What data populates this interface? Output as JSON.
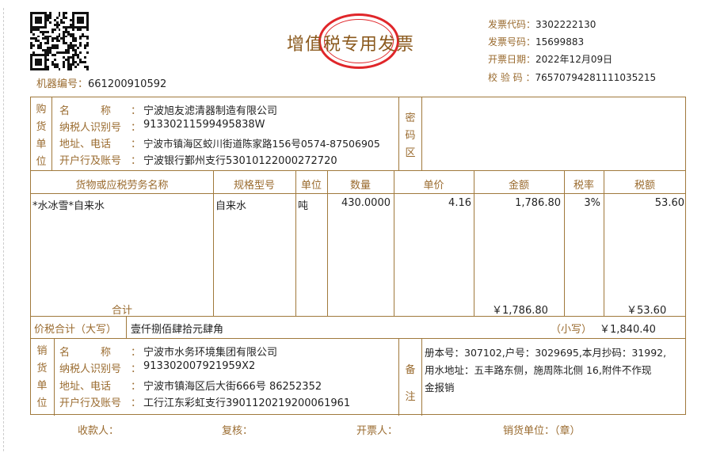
{
  "header": {
    "title": "增值税专用发票",
    "machine_label": "机器编号：",
    "machine_no": "661200910592",
    "code_label": "发票代码：",
    "code": "3302222130",
    "number_label": "发票号码：",
    "number": "15699883",
    "date_label": "开票日期：",
    "date": "2022年12月09日",
    "check_label": "校 验 码 ：",
    "check": "76570794281111035215"
  },
  "labels": {
    "buyer": "购货单位",
    "seller": "销货单位",
    "cipher": "密码区",
    "remark": "备注",
    "name": "名　　　称",
    "tax_id": "纳税人识别号",
    "addr": "地址、电话",
    "bank": "开户行及账号",
    "colon": "："
  },
  "buyer": {
    "name": "宁波旭友滤清器制造有限公司",
    "tax_id": "91330211599495838W",
    "addr": "宁波市镇海区蛟川街道陈家路156号0574-87506905",
    "bank": "宁波银行鄞州支行53010122000272720"
  },
  "columns": [
    "货物或应税劳务名称",
    "规格型号",
    "单位",
    "数量",
    "单价",
    "金额",
    "税率",
    "税额"
  ],
  "items": [
    {
      "name": "*水冰雪*自来水",
      "spec": "自来水",
      "unit": "吨",
      "qty": "430.0000",
      "price": "4.16",
      "amount": "1,786.80",
      "rate": "3%",
      "tax": "53.60"
    }
  ],
  "totals": {
    "label": "合计",
    "amount": "￥1,786.80",
    "tax": "￥53.60",
    "grand_label": "价税合计（大写）",
    "grand_words": "壹仟捌佰肆拾元肆角",
    "small_label": "（小写）",
    "grand": "￥1,840.40"
  },
  "seller": {
    "name": "宁波市水务环境集团有限公司",
    "tax_id": "913302007921959X2",
    "addr": "宁波市镇海区后大街666号 86252352",
    "bank": "工行江东彩虹支行3901120219200061961"
  },
  "remark": {
    "line1": "册本号：307102,户号：3029695,本月抄码：31992,",
    "line2": "用水地址：五丰路东侧，施周陈北侧 16,附件不作现",
    "line3": "金报销"
  },
  "footer": {
    "payee": "收款人：",
    "review": "复核：",
    "drawer": "开票人：",
    "seller_seal": "销货单位：（章）"
  },
  "colors": {
    "label": "#9a6b2f",
    "border": "#a0793c",
    "stamp": "#e0262a"
  }
}
